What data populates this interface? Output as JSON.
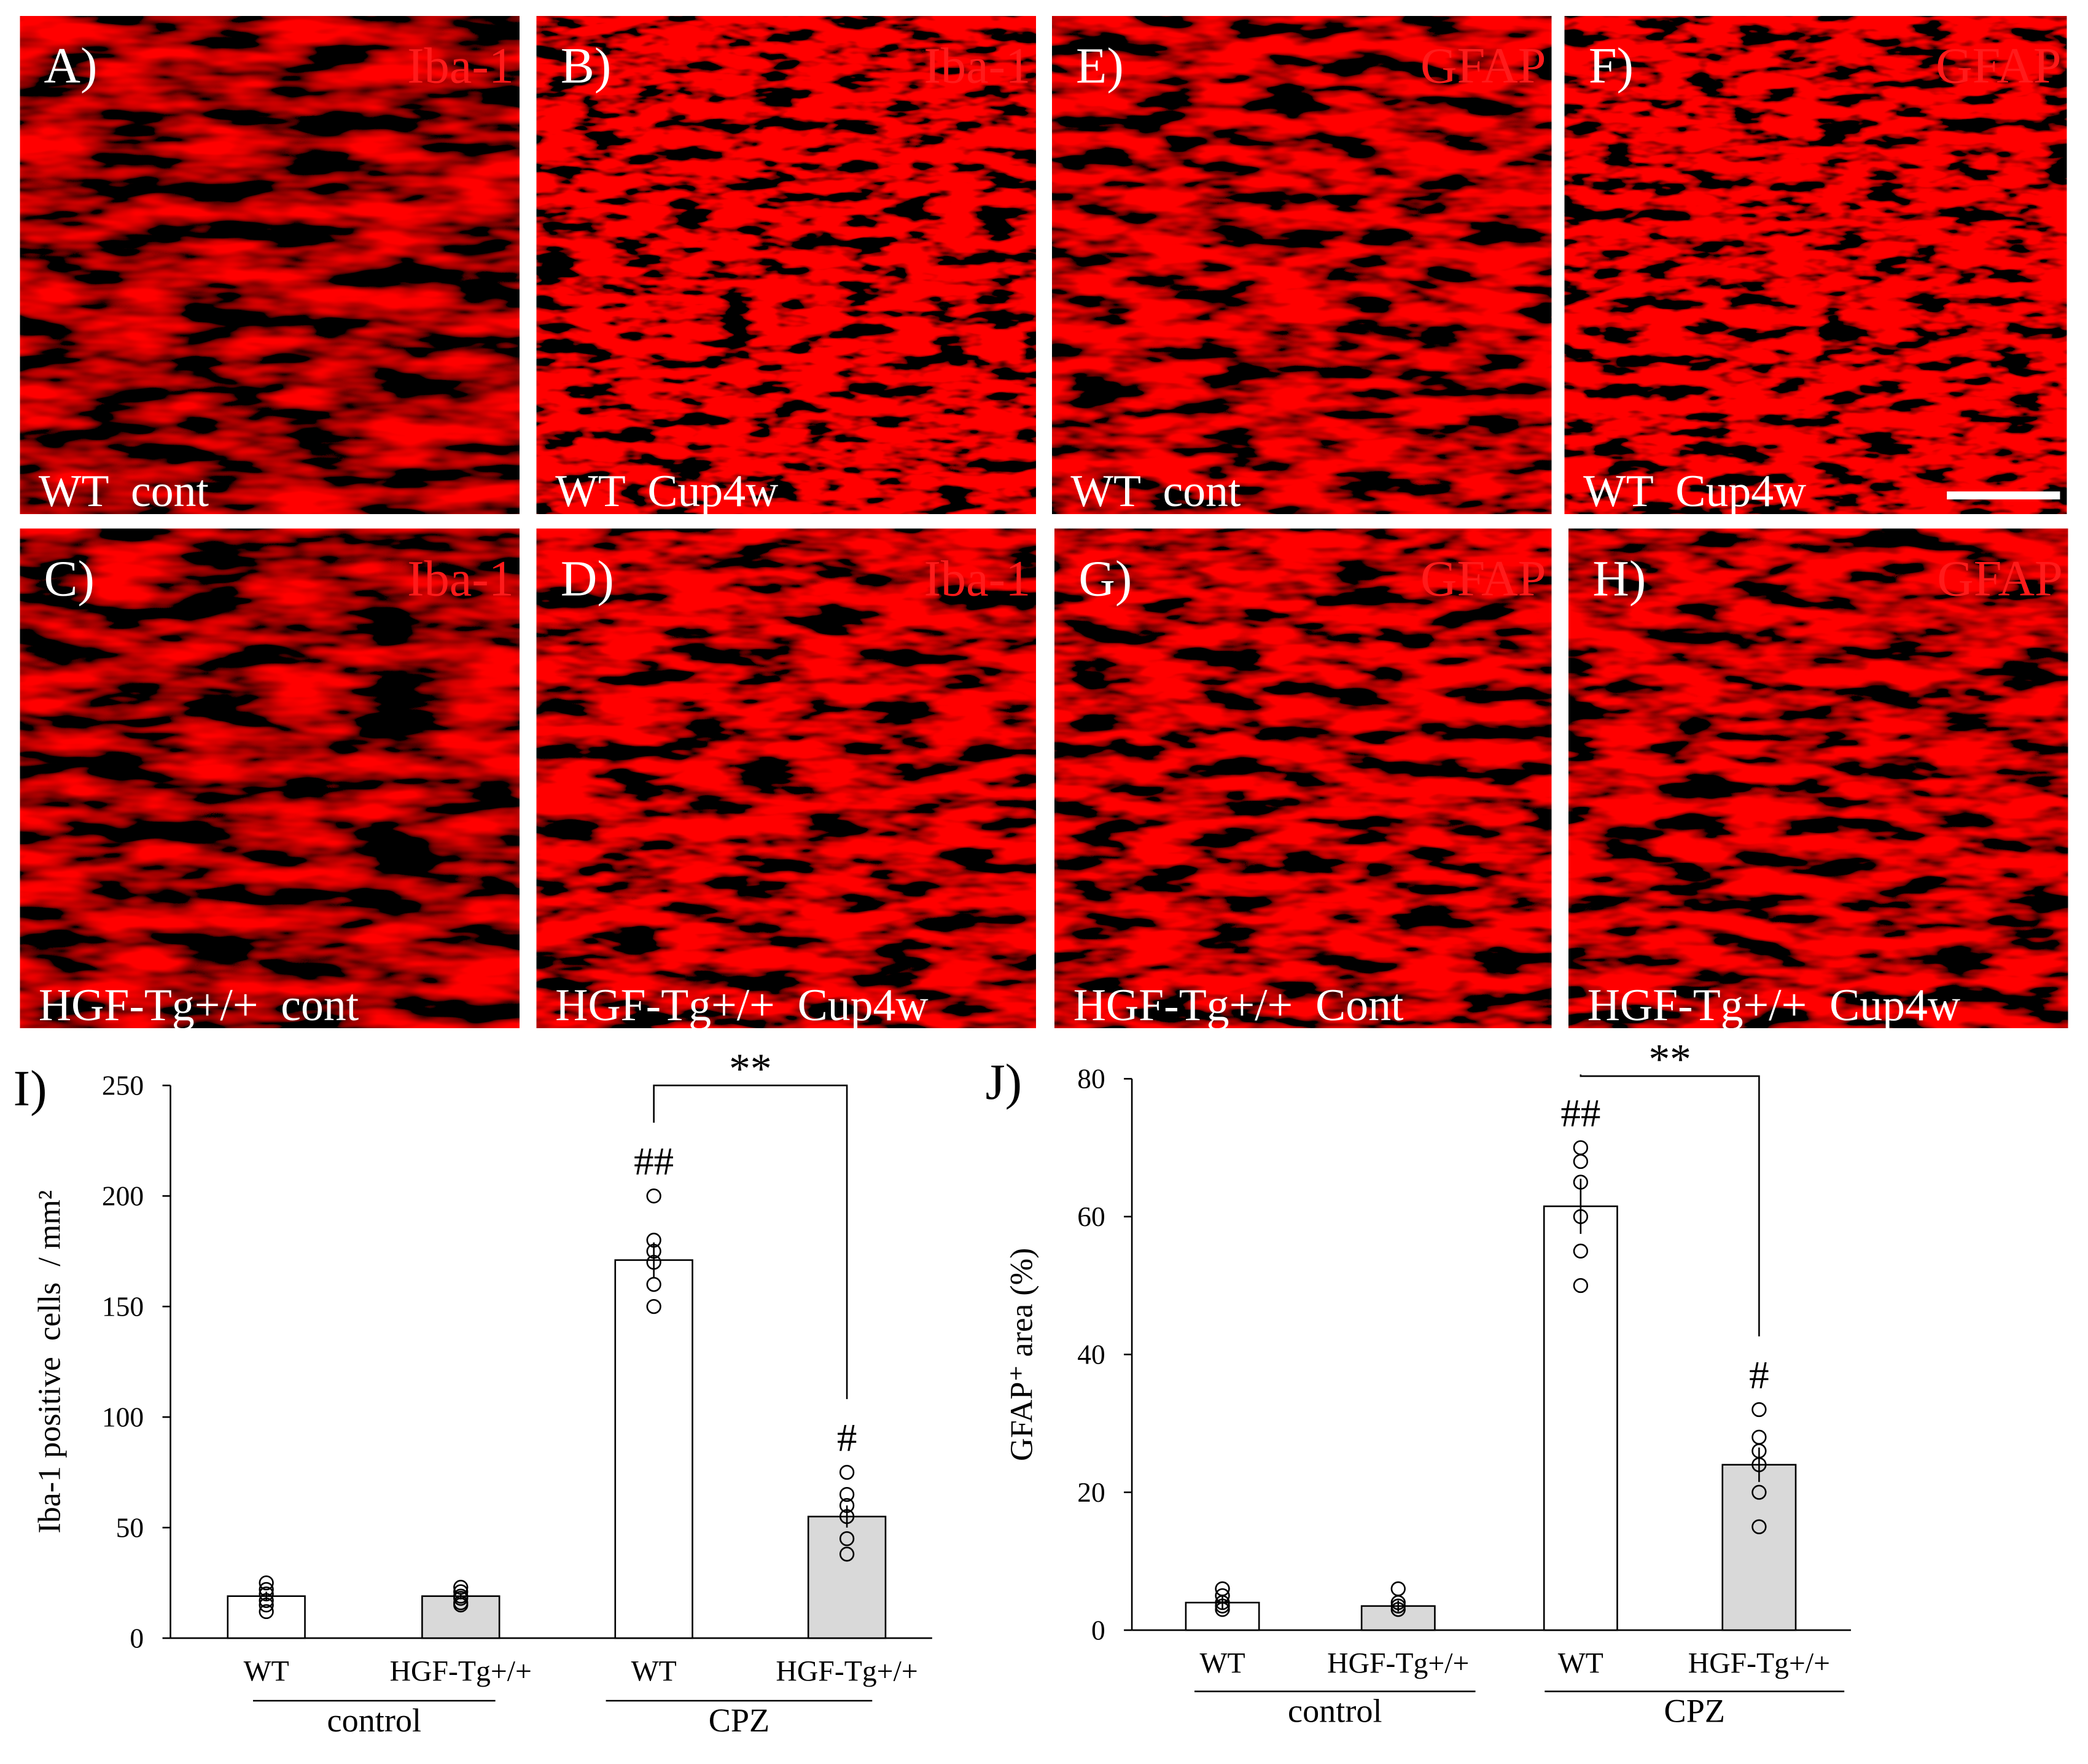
{
  "panels": [
    {
      "letter": "A)",
      "marker": "Iba-1",
      "condition": "WT  cont"
    },
    {
      "letter": "B)",
      "marker": "Iba-1",
      "condition": "WT  Cup4w"
    },
    {
      "letter": "E)",
      "marker": "GFAP",
      "condition": "WT  cont"
    },
    {
      "letter": "F)",
      "marker": "GFAP",
      "condition": "WT  Cup4w"
    },
    {
      "letter": "C)",
      "marker": "Iba-1",
      "condition": "HGF-Tg+/+  cont"
    },
    {
      "letter": "D)",
      "marker": "Iba-1",
      "condition": "HGF-Tg+/+  Cup4w"
    },
    {
      "letter": "G)",
      "marker": "GFAP",
      "condition": "HGF-Tg+/+  Cont"
    },
    {
      "letter": "H)",
      "marker": "GFAP",
      "condition": "HGF-Tg+/+  Cup4w"
    }
  ],
  "chart_data": [
    {
      "type": "bar",
      "panel_label": "I)",
      "ylabel": "Iba-1 positive  cells  / mm²",
      "categories": [
        "WT",
        "HGF-Tg+/+",
        "WT",
        "HGF-Tg+/+"
      ],
      "groups": [
        "control",
        "CPZ"
      ],
      "values": [
        19,
        19,
        171,
        55
      ],
      "errors": [
        2,
        1.5,
        8,
        5
      ],
      "points": [
        [
          25,
          22,
          20,
          17,
          15,
          12
        ],
        [
          23,
          21,
          19,
          18,
          16,
          15
        ],
        [
          200,
          180,
          175,
          170,
          160,
          150
        ],
        [
          75,
          65,
          60,
          55,
          45,
          38
        ]
      ],
      "colors": [
        "#ffffff",
        "#d9d9d9",
        "#ffffff",
        "#d9d9d9"
      ],
      "value_annotations": [
        null,
        null,
        "##",
        "#"
      ],
      "significance": "**",
      "ylim": [
        0,
        250
      ],
      "yticks": [
        0,
        50,
        100,
        150,
        200,
        250
      ]
    },
    {
      "type": "bar",
      "panel_label": "J)",
      "ylabel": "GFAP⁺ area (%)",
      "categories": [
        "WT",
        "HGF-Tg+/+",
        "WT",
        "HGF-Tg+/+"
      ],
      "groups": [
        "control",
        "CPZ"
      ],
      "values": [
        4,
        3.5,
        61.5,
        24
      ],
      "errors": [
        1,
        0.8,
        4,
        2.5
      ],
      "points": [
        [
          6,
          5,
          4,
          3.5,
          3
        ],
        [
          6,
          4,
          3.5,
          3
        ],
        [
          70,
          68,
          65,
          60,
          55,
          50
        ],
        [
          32,
          28,
          26,
          24,
          20,
          15
        ]
      ],
      "colors": [
        "#ffffff",
        "#d9d9d9",
        "#ffffff",
        "#d9d9d9"
      ],
      "value_annotations": [
        null,
        null,
        "##",
        "#"
      ],
      "significance": "**",
      "ylim": [
        0,
        80
      ],
      "yticks": [
        0,
        20,
        40,
        60,
        80
      ]
    }
  ]
}
